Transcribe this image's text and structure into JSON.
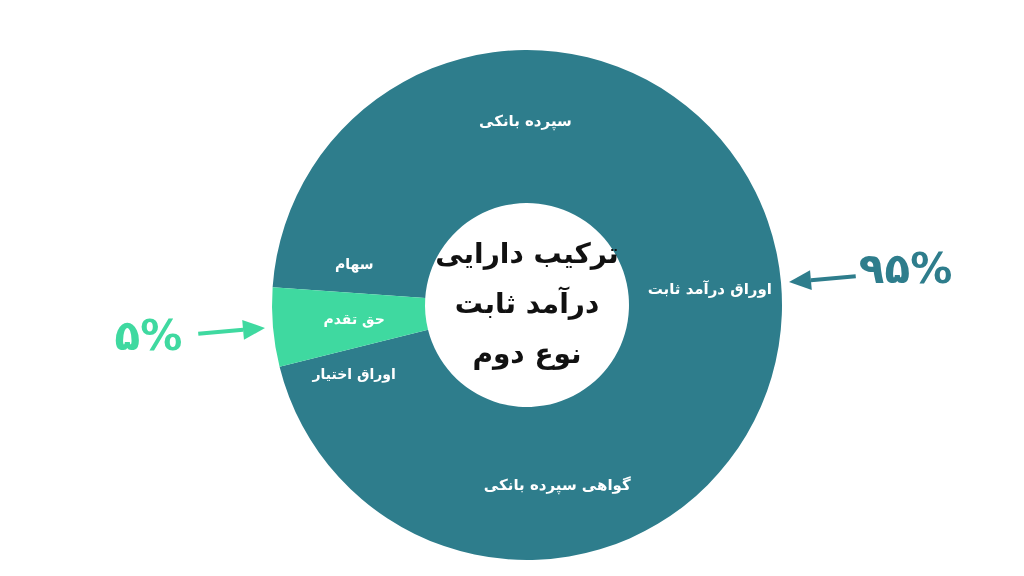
{
  "chart_data": {
    "type": "donut",
    "title": "ترکیب دارایی\nدرآمد ثابت\nنوع دوم",
    "categories": [
      "سپرده بانکی\nاوراق درآمد ثابت\nگواهی سپرده بانکی",
      "سهام\nحق تقدم\nاوراق اختیار"
    ],
    "values": [
      95,
      5
    ],
    "colors": [
      "#2e7d8c",
      "#3fd9a0"
    ],
    "value_labels": [
      "۹۵%",
      "۵%"
    ]
  }
}
